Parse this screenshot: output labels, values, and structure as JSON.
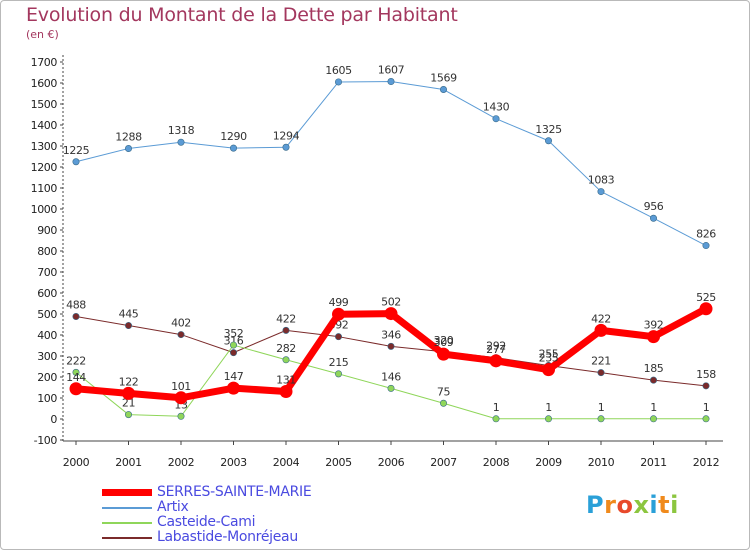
{
  "title": "Evolution du Montant de la Dette par Habitant",
  "unit": "(en €)",
  "logo": {
    "letters": [
      "P",
      "r",
      "o",
      "x",
      "i",
      "t",
      "i"
    ],
    "colors": [
      "#2aa0d8",
      "#f08a1c",
      "#e8492b",
      "#8cc63f",
      "#2aa0d8",
      "#f08a1c",
      "#8cc63f"
    ]
  },
  "chart_data": {
    "type": "line",
    "title": "Evolution du Montant de la Dette par Habitant",
    "ylabel": "(en €)",
    "xlabel": "",
    "x": [
      2000,
      2001,
      2002,
      2003,
      2004,
      2005,
      2006,
      2007,
      2008,
      2009,
      2010,
      2011,
      2012
    ],
    "ylim": [
      -100,
      1700
    ],
    "yticks": [
      -100,
      0,
      100,
      200,
      300,
      400,
      500,
      600,
      700,
      800,
      900,
      1000,
      1100,
      1200,
      1300,
      1400,
      1500,
      1600,
      1700
    ],
    "grid": false,
    "legend": "bottom-left",
    "series": [
      {
        "name": "Artix",
        "color": "#5b9bd5",
        "width": 1,
        "marker": "#5b9bd5",
        "values": [
          1225,
          1288,
          1318,
          1290,
          1294,
          1605,
          1607,
          1569,
          1430,
          1325,
          1083,
          956,
          826
        ],
        "labels": [
          "1225",
          "1288",
          "1318",
          "1290",
          "1294",
          "1605",
          "1607",
          "1569",
          "1430",
          "1325",
          "1083",
          "956",
          "826"
        ]
      },
      {
        "name": "Labastide-Monréjeau",
        "color": "#7b2b2b",
        "width": 1,
        "marker": "#7b2b2b",
        "values": [
          488,
          445,
          402,
          316,
          422,
          392,
          346,
          320,
          292,
          255,
          221,
          185,
          158
        ],
        "labels": [
          "488",
          "445",
          "402",
          "316",
          "422",
          "392",
          "346",
          "320",
          "292",
          "255",
          "221",
          "185",
          "158"
        ]
      },
      {
        "name": "Casteide-Cami",
        "color": "#8fd65a",
        "width": 1,
        "marker": "#8fd65a",
        "values": [
          222,
          21,
          13,
          352,
          282,
          215,
          146,
          75,
          1,
          1,
          1,
          1,
          1
        ],
        "labels": [
          "222",
          "21",
          "13",
          "352",
          "282",
          "215",
          "146",
          "75",
          "1",
          "1",
          "1",
          "1",
          "1"
        ]
      },
      {
        "name": "SERRES-SAINTE-MARIE",
        "color": "#ff0000",
        "width": 7,
        "marker": "#ff0000",
        "values": [
          144,
          122,
          101,
          147,
          131,
          499,
          502,
          309,
          277,
          235,
          422,
          392,
          525
        ],
        "labels": [
          "144",
          "122",
          "101",
          "147",
          "131",
          "499",
          "502",
          "309",
          "277",
          "235",
          "422",
          "392",
          "525"
        ]
      }
    ],
    "legend_order": [
      "SERRES-SAINTE-MARIE",
      "Artix",
      "Casteide-Cami",
      "Labastide-Monréjeau"
    ]
  }
}
